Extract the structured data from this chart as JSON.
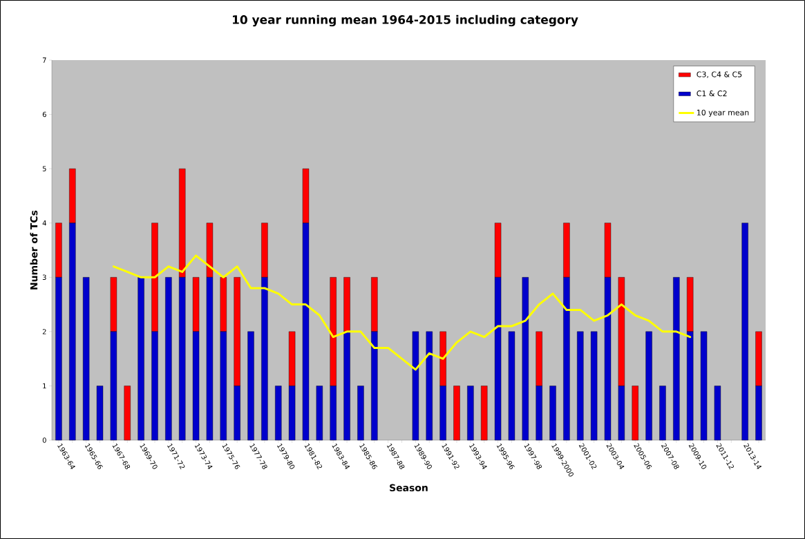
{
  "chart_data": {
    "type": "bar",
    "stacked": true,
    "title": "10 year running mean 1964-2015 including category",
    "xlabel": "Season",
    "ylabel": "Number of TCs",
    "categories": [
      "1963-64",
      null,
      "1965-66",
      null,
      "1967-68",
      null,
      "1969-70",
      null,
      "1971-72",
      null,
      "1973-74",
      null,
      "1975-76",
      null,
      "1977-78",
      null,
      "1979-80",
      null,
      "1981-82",
      null,
      "1983-84",
      null,
      "1985-86",
      null,
      "1987-88",
      null,
      "1989-90",
      null,
      "1991-92",
      null,
      "1993-94",
      null,
      "1995-96",
      null,
      "1997-98",
      null,
      "1999-2000",
      null,
      "2001-02",
      null,
      "2003-04",
      null,
      "2005-06",
      null,
      "2007-08",
      null,
      "2009-10",
      null,
      "2011-12",
      null,
      "2013-14",
      null
    ],
    "series": [
      {
        "name": "C1 & C2",
        "color": "#0000cc",
        "values": [
          3,
          4,
          3,
          1,
          2,
          0,
          3,
          2,
          3,
          3,
          2,
          3,
          2,
          1,
          2,
          3,
          1,
          1,
          4,
          1,
          1,
          2,
          1,
          2,
          0,
          0,
          2,
          2,
          1,
          0,
          1,
          0,
          3,
          2,
          3,
          1,
          1,
          3,
          2,
          2,
          3,
          1,
          0,
          2,
          1,
          3,
          2,
          2,
          1,
          0,
          4,
          1
        ]
      },
      {
        "name": "C3, C4 & C5",
        "color": "#ff0000",
        "values": [
          1,
          1,
          0,
          0,
          1,
          1,
          0,
          2,
          0,
          2,
          1,
          1,
          1,
          2,
          0,
          1,
          0,
          1,
          1,
          0,
          2,
          1,
          0,
          1,
          0,
          0,
          0,
          0,
          1,
          1,
          0,
          1,
          1,
          0,
          0,
          1,
          0,
          1,
          0,
          0,
          1,
          2,
          1,
          0,
          0,
          0,
          1,
          0,
          0,
          0,
          0,
          1
        ]
      },
      {
        "name": "10 year mean",
        "type": "line",
        "color": "#ffff00",
        "values": [
          null,
          null,
          null,
          null,
          3.2,
          3.1,
          3.0,
          3.0,
          3.2,
          3.1,
          3.4,
          3.2,
          3.0,
          3.2,
          2.8,
          2.8,
          2.7,
          2.5,
          2.5,
          2.3,
          1.9,
          2.0,
          2.0,
          1.7,
          1.7,
          1.5,
          1.3,
          1.6,
          1.5,
          1.8,
          2.0,
          1.9,
          2.1,
          2.1,
          2.2,
          2.5,
          2.7,
          2.4,
          2.4,
          2.2,
          2.3,
          2.5,
          2.3,
          2.2,
          2.0,
          2.0,
          1.9,
          null,
          null,
          null,
          null,
          null
        ]
      }
    ],
    "ylim": [
      0,
      7
    ],
    "yticks": [
      0,
      1,
      2,
      3,
      4,
      5,
      6,
      7
    ],
    "legend": "top right"
  }
}
